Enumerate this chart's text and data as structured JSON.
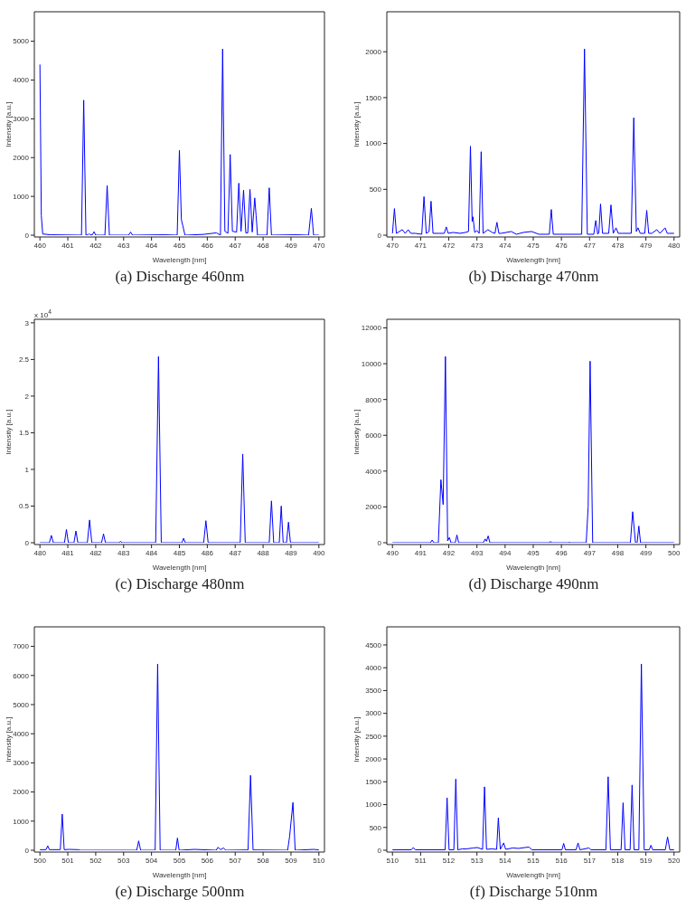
{
  "chart_data": [
    {
      "type": "line",
      "title": "(a) Discharge 460nm",
      "xlabel": "Wavelength [nm]",
      "ylabel": "Intensity [a.u.]",
      "color": "#0000ff",
      "xlim": [
        459.8,
        470.2
      ],
      "xticks": [
        460,
        461,
        462,
        463,
        464,
        465,
        466,
        467,
        468,
        469,
        470
      ],
      "ylim": [
        0,
        5760
      ],
      "yticks": [
        0,
        1000,
        2000,
        3000,
        4000,
        5000
      ],
      "x": [
        460.0,
        460.05,
        460.1,
        460.4,
        461.49,
        461.57,
        461.65,
        461.72,
        461.76,
        461.8,
        461.88,
        461.94,
        462.0,
        462.33,
        462.41,
        462.49,
        463.18,
        463.25,
        463.32,
        464.46,
        464.92,
        465.0,
        465.07,
        465.12,
        465.2,
        465.86,
        466.33,
        466.47,
        466.55,
        466.63,
        466.74,
        466.82,
        466.9,
        467.05,
        467.13,
        467.21,
        467.3,
        467.38,
        467.45,
        467.53,
        467.61,
        467.7,
        467.75,
        467.8,
        468.14,
        468.22,
        468.3,
        469.2,
        469.63,
        469.73,
        469.81,
        470.0
      ],
      "values": [
        4400,
        500,
        30,
        10,
        0,
        3480,
        0,
        10,
        40,
        10,
        10,
        90,
        0,
        0,
        1280,
        0,
        0,
        80,
        0,
        10,
        0,
        2190,
        400,
        250,
        0,
        20,
        60,
        0,
        4800,
        100,
        50,
        2080,
        100,
        80,
        1340,
        100,
        1160,
        60,
        60,
        1180,
        80,
        960,
        500,
        0,
        0,
        1220,
        0,
        10,
        0,
        690,
        0,
        0
      ]
    },
    {
      "type": "line",
      "title": "(b) Discharge 470nm",
      "xlabel": "Wavelength [nm]",
      "ylabel": "Intensity [a.u.]",
      "color": "#0000ff",
      "xlim": [
        469.8,
        480.2
      ],
      "xticks": [
        470,
        471,
        472,
        473,
        474,
        475,
        476,
        477,
        478,
        479,
        480
      ],
      "ylim": [
        0,
        2436
      ],
      "yticks": [
        0,
        500,
        1000,
        1500,
        2000
      ],
      "x": [
        470.0,
        470.07,
        470.14,
        470.35,
        470.45,
        470.56,
        470.65,
        470.81,
        471.04,
        471.12,
        471.2,
        471.3,
        471.33,
        471.37,
        471.44,
        471.65,
        471.84,
        471.91,
        471.98,
        472.15,
        472.4,
        472.59,
        472.7,
        472.77,
        472.83,
        472.86,
        472.92,
        473.0,
        473.08,
        473.15,
        473.22,
        473.39,
        473.54,
        473.64,
        473.71,
        473.78,
        473.86,
        474.22,
        474.4,
        474.65,
        474.94,
        475.2,
        475.57,
        475.64,
        475.71,
        476.72,
        476.82,
        476.92,
        477.15,
        477.22,
        477.29,
        477.33,
        477.39,
        477.46,
        477.68,
        477.76,
        477.84,
        477.94,
        478.02,
        478.16,
        478.48,
        478.57,
        478.66,
        478.72,
        478.8,
        478.96,
        479.03,
        479.1,
        479.21,
        479.39,
        479.5,
        479.68,
        479.76,
        479.84,
        480.0
      ],
      "values": [
        20,
        290,
        20,
        60,
        20,
        60,
        20,
        20,
        10,
        420,
        20,
        40,
        180,
        370,
        20,
        20,
        20,
        90,
        20,
        30,
        20,
        30,
        40,
        970,
        150,
        200,
        30,
        50,
        20,
        910,
        20,
        60,
        30,
        20,
        140,
        20,
        20,
        40,
        10,
        30,
        40,
        10,
        10,
        280,
        10,
        10,
        2030,
        10,
        10,
        160,
        10,
        30,
        340,
        20,
        20,
        330,
        20,
        80,
        20,
        20,
        20,
        1280,
        40,
        80,
        20,
        20,
        270,
        20,
        20,
        60,
        20,
        80,
        20,
        20,
        20
      ]
    },
    {
      "type": "line",
      "title": "(c) Discharge 480nm",
      "xlabel": "Wavelength [nm]",
      "ylabel": "Intensity [a.u.]",
      "color": "#0000ff",
      "annotations": [
        "x 10$^{4}$"
      ],
      "xlim": [
        479.8,
        490.2
      ],
      "xticks": [
        480,
        481,
        482,
        483,
        484,
        485,
        486,
        487,
        488,
        489,
        490
      ],
      "ylim": [
        0,
        3.048
      ],
      "yticks": [
        0,
        0.5,
        1,
        1.5,
        2,
        2.5,
        3
      ],
      "x": [
        480.0,
        480.34,
        480.41,
        480.48,
        480.88,
        480.95,
        481.02,
        481.22,
        481.29,
        481.36,
        481.7,
        481.78,
        481.86,
        482.21,
        482.28,
        482.35,
        482.84,
        482.89,
        482.94,
        484.15,
        484.25,
        484.35,
        485.09,
        485.15,
        485.21,
        485.87,
        485.95,
        486.03,
        487.18,
        487.27,
        487.36,
        488.22,
        488.3,
        488.38,
        488.58,
        488.65,
        488.72,
        488.84,
        488.91,
        488.98,
        490.0
      ],
      "values": [
        0,
        0,
        0.1,
        0,
        0,
        0.18,
        0,
        0,
        0.16,
        0,
        0,
        0.31,
        0,
        0,
        0.12,
        0,
        0,
        0.02,
        0,
        0,
        2.54,
        0,
        0,
        0.06,
        0,
        0,
        0.3,
        0,
        0,
        1.21,
        0,
        0,
        0.57,
        0,
        0,
        0.5,
        0,
        0,
        0.28,
        0,
        0
      ]
    },
    {
      "type": "line",
      "title": "(d) Discharge 490nm",
      "xlabel": "Wavelength [nm]",
      "ylabel": "Intensity [a.u.]",
      "color": "#0000ff",
      "xlim": [
        489.8,
        500.2
      ],
      "xticks": [
        490,
        491,
        492,
        493,
        494,
        495,
        496,
        497,
        498,
        499,
        500
      ],
      "ylim": [
        0,
        12480
      ],
      "yticks": [
        0,
        2000,
        4000,
        6000,
        8000,
        10000,
        12000
      ],
      "x": [
        490.0,
        491.35,
        491.41,
        491.47,
        491.63,
        491.72,
        491.8,
        491.88,
        491.96,
        492.02,
        492.08,
        492.23,
        492.29,
        492.35,
        493.23,
        493.29,
        493.34,
        493.4,
        493.46,
        495.55,
        495.61,
        495.67,
        496.24,
        496.29,
        496.34,
        496.88,
        496.95,
        497.02,
        497.11,
        498.45,
        498.53,
        498.63,
        498.69,
        498.75,
        498.81,
        500.0
      ],
      "values": [
        0,
        0,
        150,
        0,
        0,
        3520,
        2130,
        10400,
        100,
        290,
        0,
        0,
        430,
        0,
        0,
        210,
        80,
        380,
        0,
        0,
        60,
        0,
        0,
        20,
        0,
        0,
        2000,
        10140,
        0,
        0,
        1730,
        0,
        0,
        930,
        0,
        0
      ]
    },
    {
      "type": "line",
      "title": "(e) Discharge 500nm",
      "xlabel": "Wavelength [nm]",
      "ylabel": "Intensity [a.u.]",
      "color": "#0000ff",
      "xlim": [
        499.8,
        510.2
      ],
      "xticks": [
        500,
        501,
        502,
        503,
        504,
        505,
        506,
        507,
        508,
        509,
        510
      ],
      "ylim": [
        0,
        7670
      ],
      "yticks": [
        0,
        1000,
        2000,
        3000,
        4000,
        5000,
        6000,
        7000
      ],
      "x": [
        500.0,
        500.22,
        500.28,
        500.34,
        500.73,
        500.8,
        500.87,
        501.05,
        501.37,
        501.45,
        503.47,
        503.54,
        503.61,
        504.13,
        504.22,
        504.31,
        504.87,
        504.93,
        504.99,
        505.54,
        506.32,
        506.38,
        506.48,
        506.58,
        506.66,
        507.46,
        507.55,
        507.64,
        508.88,
        508.95,
        509.07,
        509.15,
        509.82,
        510.0
      ],
      "values": [
        20,
        20,
        150,
        20,
        20,
        1240,
        20,
        30,
        20,
        0,
        0,
        320,
        0,
        0,
        6390,
        0,
        0,
        420,
        0,
        30,
        0,
        100,
        20,
        80,
        0,
        10,
        2570,
        10,
        0,
        470,
        1640,
        0,
        30,
        10
      ]
    },
    {
      "type": "line",
      "title": "(f) Discharge 510nm",
      "xlabel": "Wavelength [nm]",
      "ylabel": "Intensity [a.u.]",
      "color": "#0000ff",
      "xlim": [
        509.8,
        520.2
      ],
      "xticks": [
        510,
        511,
        512,
        513,
        514,
        515,
        516,
        517,
        518,
        519,
        520
      ],
      "ylim": [
        0,
        4896
      ],
      "yticks": [
        0,
        500,
        1000,
        1500,
        2000,
        2500,
        3000,
        3500,
        4000,
        4500
      ],
      "x": [
        510.0,
        510.67,
        510.74,
        510.81,
        511.87,
        511.94,
        512.01,
        512.18,
        512.25,
        512.32,
        512.48,
        512.63,
        512.87,
        513.01,
        513.2,
        513.27,
        513.34,
        513.53,
        513.7,
        513.76,
        513.83,
        513.95,
        514.02,
        514.27,
        514.48,
        514.71,
        514.85,
        514.95,
        515.13,
        516.02,
        516.08,
        516.14,
        516.52,
        516.59,
        516.66,
        516.98,
        517.05,
        517.58,
        517.66,
        517.74,
        518.12,
        518.19,
        518.26,
        518.44,
        518.51,
        518.58,
        518.75,
        518.84,
        518.94,
        519.12,
        519.18,
        519.24,
        519.69,
        519.77,
        519.85,
        520.0
      ],
      "values": [
        10,
        10,
        60,
        10,
        10,
        1150,
        10,
        10,
        1560,
        10,
        30,
        30,
        50,
        60,
        20,
        1390,
        20,
        30,
        20,
        710,
        20,
        160,
        20,
        50,
        40,
        60,
        70,
        10,
        10,
        10,
        150,
        10,
        10,
        160,
        10,
        50,
        10,
        10,
        1610,
        10,
        10,
        1040,
        10,
        10,
        1430,
        10,
        10,
        4080,
        10,
        10,
        110,
        10,
        10,
        290,
        10,
        10
      ]
    }
  ]
}
